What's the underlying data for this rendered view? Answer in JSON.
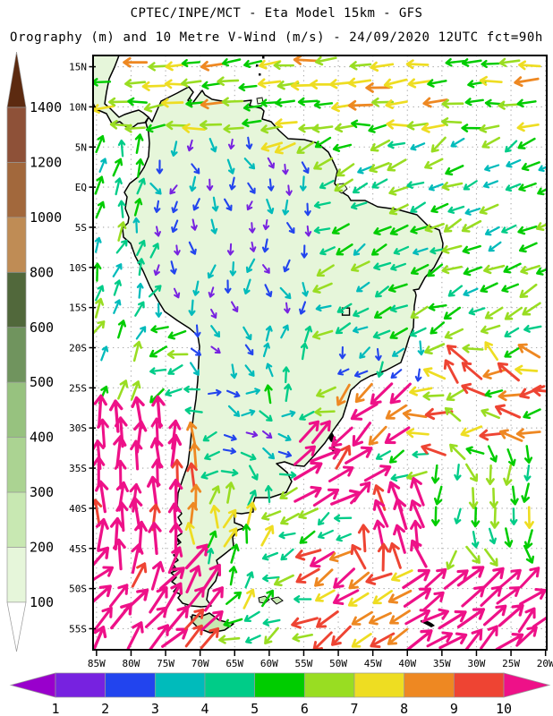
{
  "header": {
    "title": "CPTEC/INPE/MCT -  Eta Model 15km - GFS",
    "subtitle": "Orography (m) and 10 Metre V-Wind (m/s) - 24/09/2020 12UTC fct=90h"
  },
  "map": {
    "extent": {
      "lon_min": -85.5,
      "lon_max": -19.8,
      "lat_min": -57.6,
      "lat_max": 16.4
    },
    "grid_interval_deg": 5,
    "lat_ticks": [
      {
        "label": "15N",
        "lat": 15
      },
      {
        "label": "10N",
        "lat": 10
      },
      {
        "label": "5N",
        "lat": 5
      },
      {
        "label": "EQ",
        "lat": 0
      },
      {
        "label": "5S",
        "lat": -5
      },
      {
        "label": "10S",
        "lat": -10
      },
      {
        "label": "15S",
        "lat": -15
      },
      {
        "label": "20S",
        "lat": -20
      },
      {
        "label": "25S",
        "lat": -25
      },
      {
        "label": "30S",
        "lat": -30
      },
      {
        "label": "35S",
        "lat": -35
      },
      {
        "label": "40S",
        "lat": -40
      },
      {
        "label": "45S",
        "lat": -45
      },
      {
        "label": "50S",
        "lat": -50
      },
      {
        "label": "55S",
        "lat": -55
      }
    ],
    "lon_ticks": [
      {
        "label": "85W",
        "lon": -85
      },
      {
        "label": "80W",
        "lon": -80
      },
      {
        "label": "75W",
        "lon": -75
      },
      {
        "label": "70W",
        "lon": -70
      },
      {
        "label": "65W",
        "lon": -65
      },
      {
        "label": "60W",
        "lon": -60
      },
      {
        "label": "55W",
        "lon": -55
      },
      {
        "label": "50W",
        "lon": -50
      },
      {
        "label": "45W",
        "lon": -45
      },
      {
        "label": "40W",
        "lon": -40
      },
      {
        "label": "35W",
        "lon": -35
      },
      {
        "label": "30W",
        "lon": -30
      },
      {
        "label": "25W",
        "lon": -25
      },
      {
        "label": "20W",
        "lon": -20
      }
    ],
    "marker": {
      "shape": "open-square",
      "lon": -48.9,
      "lat": -15.5
    }
  },
  "elevation_scale": {
    "unit": "m",
    "boundary_labels": [
      "1400",
      "1200",
      "1000",
      "800",
      "600",
      "500",
      "400",
      "300",
      "200",
      "100"
    ],
    "bands": [
      {
        "level": ">1400",
        "color": "#5c2a10"
      },
      {
        "level": "1200-1400",
        "color": "#8e5138"
      },
      {
        "level": "1000-1200",
        "color": "#a2683c"
      },
      {
        "level": "800-1000",
        "color": "#bf8c55"
      },
      {
        "level": "600-800",
        "color": "#51683b"
      },
      {
        "level": "500-600",
        "color": "#70945e"
      },
      {
        "level": "400-500",
        "color": "#97c27f"
      },
      {
        "level": "300-400",
        "color": "#abd392"
      },
      {
        "level": "200-300",
        "color": "#c8e8b2"
      },
      {
        "level": "100-200",
        "color": "#e6f6da"
      },
      {
        "level": "<100",
        "color": "#ffffff"
      }
    ]
  },
  "wind_scale": {
    "unit": "m/s",
    "boundary_labels": [
      "1",
      "2",
      "3",
      "4",
      "5",
      "6",
      "7",
      "8",
      "9",
      "10"
    ],
    "colors": [
      "#9900cc",
      "#7722e0",
      "#2244ee",
      "#00bbbb",
      "#00cc88",
      "#00cc00",
      "#99dd22",
      "#eedd22",
      "#ee8822",
      "#ee4433",
      "#ee1188"
    ]
  },
  "wind_field": {
    "arrow_grid_spacing_deg": [
      2.7,
      2.56
    ],
    "regimes": [
      {
        "name": "caribbean-easterlies",
        "lat": [
          7,
          16.4
        ],
        "lon": [
          -85.5,
          -19.8
        ],
        "dir": 185,
        "spread": 15,
        "spd": [
          5,
          8.5
        ]
      },
      {
        "name": "pacific-coast-northerly",
        "lat": [
          -27,
          7
        ],
        "lon": [
          -85.5,
          -76.5
        ],
        "dir": 70,
        "spread": 30,
        "spd": [
          3.5,
          6.5
        ]
      },
      {
        "name": "guiana-offshore-trades",
        "lat": [
          3.5,
          7
        ],
        "lon": [
          -60,
          -50
        ],
        "dir": 200,
        "spread": 18,
        "spd": [
          4.5,
          7.5
        ]
      },
      {
        "name": "atlantic-trades",
        "lat": [
          -19,
          7
        ],
        "lon": [
          -53,
          -19.8
        ],
        "dir": 205,
        "spread": 22,
        "spd": [
          3.5,
          7
        ]
      },
      {
        "name": "amazon-interior-weak",
        "lat": [
          -16,
          7
        ],
        "lon": [
          -76.5,
          -53
        ],
        "dir": 275,
        "spread": 55,
        "spd": [
          1,
          4
        ]
      },
      {
        "name": "altiplano-weak",
        "lat": [
          -24,
          -14
        ],
        "lon": [
          -72,
          -62
        ],
        "dir": 300,
        "spread": 45,
        "spd": [
          1.5,
          4
        ]
      },
      {
        "name": "paraguay-northerly",
        "lat": [
          -26,
          -16
        ],
        "lon": [
          -62,
          -52
        ],
        "dir": 85,
        "spread": 35,
        "spd": [
          2.5,
          5.5
        ]
      },
      {
        "name": "central-brazil-weak",
        "lat": [
          -24,
          -14
        ],
        "lon": [
          -52,
          -38
        ],
        "dir": 240,
        "spread": 65,
        "spd": [
          1.5,
          4.5
        ]
      },
      {
        "name": "se-brazil-coastal-jet",
        "lat": [
          -33,
          -21
        ],
        "lon": [
          -50,
          -40
        ],
        "dir": 225,
        "spread": 28,
        "spd": [
          8,
          11.5
        ]
      },
      {
        "name": "uruguay-offshore-ne",
        "lat": [
          -40,
          -30
        ],
        "lon": [
          -55,
          -44
        ],
        "dir": 45,
        "spread": 30,
        "spd": [
          9.5,
          13
        ]
      },
      {
        "name": "storm-northwesterlies",
        "lat": [
          -48,
          -37
        ],
        "lon": [
          -48,
          -36
        ],
        "dir": 115,
        "spread": 30,
        "spd": [
          9.5,
          12.5
        ]
      },
      {
        "name": "south-atlantic-sw",
        "lat": [
          -57.6,
          -45
        ],
        "lon": [
          -55,
          -39
        ],
        "dir": 215,
        "spread": 30,
        "spd": [
          7,
          10.5
        ]
      },
      {
        "name": "far-south-atlantic-ne",
        "lat": [
          -57.6,
          -47
        ],
        "lon": [
          -39,
          -19.8
        ],
        "dir": 40,
        "spread": 20,
        "spd": [
          10,
          13
        ]
      },
      {
        "name": "mid-atlantic-southerly",
        "lat": [
          -47,
          -33
        ],
        "lon": [
          -36,
          -19.8
        ],
        "dir": 275,
        "spread": 40,
        "spd": [
          4,
          7.5
        ]
      },
      {
        "name": "subtropical-atlantic-mixed",
        "lat": [
          -33,
          -19
        ],
        "lon": [
          -40,
          -19.8
        ],
        "dir": 170,
        "spread": 55,
        "spd": [
          5,
          10
        ]
      },
      {
        "name": "chile-coast-southerly",
        "lat": [
          -45,
          -28
        ],
        "lon": [
          -72.5,
          -69.5
        ],
        "dir": 95,
        "spread": 18,
        "spd": [
          7.5,
          10
        ]
      },
      {
        "name": "pacific-southerly-strong",
        "lat": [
          -46,
          -27
        ],
        "lon": [
          -85.5,
          -72.5
        ],
        "dir": 90,
        "spread": 12,
        "spd": [
          9.5,
          13.5
        ]
      },
      {
        "name": "pacific-far-south-ne",
        "lat": [
          -57.6,
          -46
        ],
        "lon": [
          -85.5,
          -66
        ],
        "dir": 55,
        "spread": 28,
        "spd": [
          9.5,
          13.5
        ]
      },
      {
        "name": "patagonia-mixed",
        "lat": [
          -53,
          -38
        ],
        "lon": [
          -72,
          -60
        ],
        "dir": 80,
        "spread": 45,
        "spd": [
          4,
          8
        ]
      },
      {
        "name": "pampa-weak-se",
        "lat": [
          -38,
          -24
        ],
        "lon": [
          -68,
          -55
        ],
        "dir": 340,
        "spread": 60,
        "spd": [
          1.5,
          4.5
        ]
      },
      {
        "name": "default-flow",
        "lat": [
          -57.6,
          16.4
        ],
        "lon": [
          -85.5,
          -19.8
        ],
        "dir": 200,
        "spread": 40,
        "spd": [
          4,
          7
        ]
      }
    ]
  }
}
